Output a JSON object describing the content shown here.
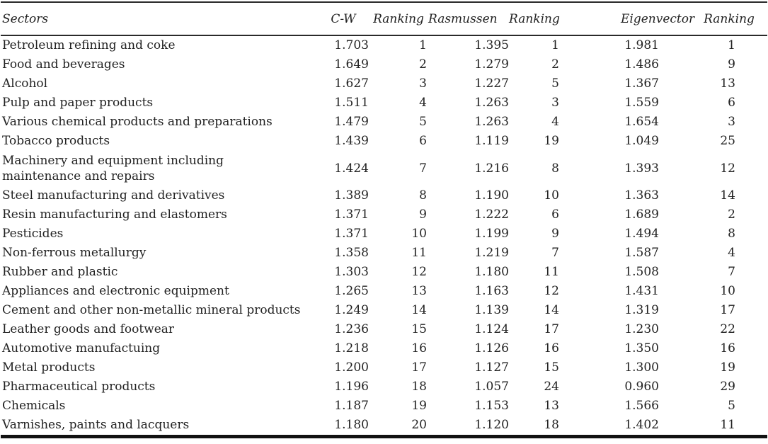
{
  "table": {
    "columns": [
      "Sectors",
      "C-W",
      "Ranking",
      "Rasmussen",
      "Ranking",
      "Eigenvector",
      "Ranking"
    ],
    "rows": [
      [
        "Petroleum refining and coke",
        "1.703",
        "1",
        "1.395",
        "1",
        "1.981",
        "1"
      ],
      [
        "Food and beverages",
        "1.649",
        "2",
        "1.279",
        "2",
        "1.486",
        "9"
      ],
      [
        "Alcohol",
        "1.627",
        "3",
        "1.227",
        "5",
        "1.367",
        "13"
      ],
      [
        "Pulp and paper products",
        "1.511",
        "4",
        "1.263",
        "3",
        "1.559",
        "6"
      ],
      [
        "Various chemical products and preparations",
        "1.479",
        "5",
        "1.263",
        "4",
        "1.654",
        "3"
      ],
      [
        "Tobacco products",
        "1.439",
        "6",
        "1.119",
        "19",
        "1.049",
        "25"
      ],
      [
        "Machinery and equipment including maintenance and repairs",
        "1.424",
        "7",
        "1.216",
        "8",
        "1.393",
        "12"
      ],
      [
        "Steel manufacturing and derivatives",
        "1.389",
        "8",
        "1.190",
        "10",
        "1.363",
        "14"
      ],
      [
        "Resin manufacturing and elastomers",
        "1.371",
        "9",
        "1.222",
        "6",
        "1.689",
        "2"
      ],
      [
        "Pesticides",
        "1.371",
        "10",
        "1.199",
        "9",
        "1.494",
        "8"
      ],
      [
        "Non-ferrous metallurgy",
        "1.358",
        "11",
        "1.219",
        "7",
        "1.587",
        "4"
      ],
      [
        "Rubber and plastic",
        "1.303",
        "12",
        "1.180",
        "11",
        "1.508",
        "7"
      ],
      [
        "Appliances and electronic equipment",
        "1.265",
        "13",
        "1.163",
        "12",
        "1.431",
        "10"
      ],
      [
        "Cement and other non-metallic mineral products",
        "1.249",
        "14",
        "1.139",
        "14",
        "1.319",
        "17"
      ],
      [
        "Leather goods and footwear",
        "1.236",
        "15",
        "1.124",
        "17",
        "1.230",
        "22"
      ],
      [
        "Automotive manufactuing",
        "1.218",
        "16",
        "1.126",
        "16",
        "1.350",
        "16"
      ],
      [
        "Metal products",
        "1.200",
        "17",
        "1.127",
        "15",
        "1.300",
        "19"
      ],
      [
        "Pharmaceutical products",
        "1.196",
        "18",
        "1.057",
        "24",
        "0.960",
        "29"
      ],
      [
        "Chemicals",
        "1.187",
        "19",
        "1.153",
        "13",
        "1.566",
        "5"
      ],
      [
        "Varnishes, paints and lacquers",
        "1.180",
        "20",
        "1.120",
        "18",
        "1.402",
        "11"
      ]
    ],
    "tall_row_index": 6
  }
}
